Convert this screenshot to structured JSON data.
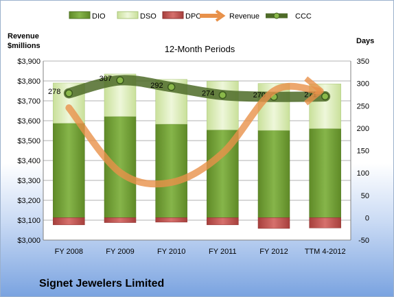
{
  "company": "Signet Jewelers Limited",
  "chart_data": {
    "type": "bar",
    "title": "12-Month Periods",
    "ylabel_left": "Revenue\n$millions",
    "ylabel_right": "Days",
    "categories": [
      "FY 2008",
      "FY 2009",
      "FY 2010",
      "FY 2011",
      "FY 2012",
      "TTM 4-2012"
    ],
    "left_axis": {
      "min": 3000,
      "max": 3900,
      "step": 100,
      "ticks": [
        "$3,000",
        "$3,100",
        "$3,200",
        "$3,300",
        "$3,400",
        "$3,500",
        "$3,600",
        "$3,700",
        "$3,800",
        "$3,900"
      ]
    },
    "right_axis": {
      "min": -50,
      "max": 350,
      "step": 50,
      "ticks": [
        "-50",
        "0",
        "50",
        "100",
        "150",
        "200",
        "250",
        "300",
        "350"
      ]
    },
    "grid": true,
    "legend_position": "top",
    "series": [
      {
        "name": "DIO",
        "axis": "right",
        "type": "stacked-bar",
        "color": "#6b9a2e",
        "values": [
          211,
          226,
          209,
          196,
          195,
          199
        ]
      },
      {
        "name": "DSO",
        "axis": "right",
        "type": "stacked-bar",
        "color": "#d9ecb4",
        "values": [
          90,
          95,
          100,
          109,
          105,
          100
        ]
      },
      {
        "name": "DPO",
        "axis": "right",
        "type": "stacked-bar-negative",
        "color": "#c0504d",
        "values": [
          -16,
          -11,
          -10,
          -16,
          -24,
          -23
        ]
      },
      {
        "name": "Revenue",
        "axis": "left",
        "type": "smooth-line",
        "color": "#e8914a",
        "values": [
          3665,
          3340,
          3290,
          3437,
          3750,
          3750
        ]
      },
      {
        "name": "CCC",
        "axis": "right",
        "type": "smooth-line",
        "color": "#4e6b28",
        "values": [
          278,
          307,
          292,
          274,
          270,
          271
        ],
        "labels": [
          "278",
          "307",
          "292",
          "274",
          "270",
          "271"
        ]
      }
    ]
  }
}
